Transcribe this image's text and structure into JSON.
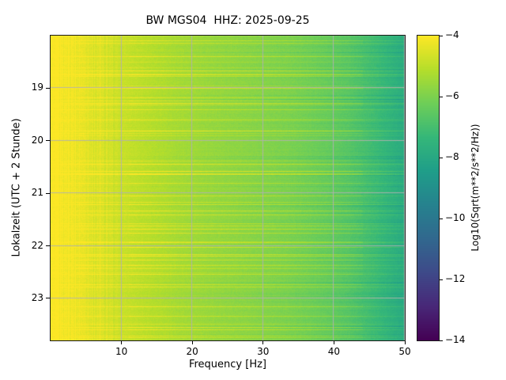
{
  "chart_data": {
    "type": "heatmap",
    "subtype": "spectrogram",
    "title": "BW MGS04  HHZ: 2025-09-25",
    "xlabel": "Frequency [Hz]",
    "ylabel": "Lokalzeit (UTC + 2 Stunde)",
    "x_range": [
      0,
      50
    ],
    "x_ticks": [
      10,
      20,
      30,
      40,
      50
    ],
    "y_range": [
      18.0,
      23.8
    ],
    "y_ticks": [
      19,
      20,
      21,
      22,
      23
    ],
    "grid": true,
    "grid_color": "#b0b0b0",
    "colorbar": {
      "label": "Log10(Sqrt(m**2/s**2/Hz))",
      "range": [
        -14,
        -4
      ],
      "ticks": [
        -4,
        -6,
        -8,
        -10,
        -12,
        -14
      ],
      "tick_labels": [
        "−4",
        "−6",
        "−8",
        "−10",
        "−12",
        "−14"
      ],
      "colormap": "viridis",
      "stops": [
        {
          "t": 0.0,
          "color": "#440154"
        },
        {
          "t": 0.111,
          "color": "#482878"
        },
        {
          "t": 0.222,
          "color": "#3e4a89"
        },
        {
          "t": 0.333,
          "color": "#31688e"
        },
        {
          "t": 0.444,
          "color": "#26828e"
        },
        {
          "t": 0.556,
          "color": "#1f9e89"
        },
        {
          "t": 0.667,
          "color": "#35b779"
        },
        {
          "t": 0.778,
          "color": "#6ece58"
        },
        {
          "t": 0.889,
          "color": "#b5de2b"
        },
        {
          "t": 1.0,
          "color": "#fde725"
        }
      ]
    },
    "frequency_profile": {
      "freq_hz": [
        0,
        0.5,
        1,
        2,
        3,
        4,
        5,
        6,
        8,
        10,
        12,
        15,
        18,
        22,
        26,
        30,
        34,
        38,
        42,
        46,
        50
      ],
      "mean_log_amplitude": [
        -4.0,
        -4.0,
        -4.05,
        -4.15,
        -4.2,
        -4.3,
        -4.35,
        -4.45,
        -4.6,
        -4.8,
        -4.95,
        -5.15,
        -5.35,
        -5.55,
        -5.7,
        -5.85,
        -6.0,
        -6.25,
        -6.6,
        -7.15,
        -7.8
      ]
    },
    "texture": {
      "horizontal_event_stripes": true,
      "stripe_max_boost": 1.15,
      "noise_amplitude": 0.28
    }
  }
}
